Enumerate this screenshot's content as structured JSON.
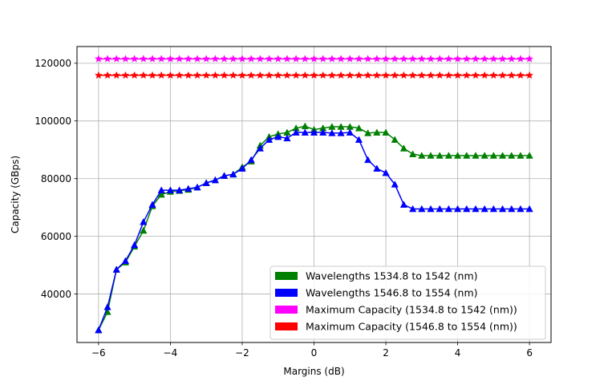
{
  "chart_data": {
    "type": "line",
    "title": "",
    "xlabel": "Margins (dB)",
    "ylabel": "Capacity (GBps)",
    "xlim": [
      -6.6,
      6.6
    ],
    "ylim": [
      23200,
      125800
    ],
    "xticks": [
      -6,
      -4,
      -2,
      0,
      2,
      4,
      6
    ],
    "yticks": [
      40000,
      60000,
      80000,
      100000,
      120000
    ],
    "grid": true,
    "legend_position": "lower-right",
    "x": [
      -6,
      -5.75,
      -5.5,
      -5.25,
      -5,
      -4.75,
      -4.5,
      -4.25,
      -4,
      -3.75,
      -3.5,
      -3.25,
      -3,
      -2.75,
      -2.5,
      -2.25,
      -2,
      -1.75,
      -1.5,
      -1.25,
      -1,
      -0.75,
      -0.5,
      -0.25,
      0,
      0.25,
      0.5,
      0.75,
      1,
      1.25,
      1.5,
      1.75,
      2,
      2.25,
      2.5,
      2.75,
      3,
      3.25,
      3.5,
      3.75,
      4,
      4.25,
      4.5,
      4.75,
      5,
      5.25,
      5.5,
      5.75,
      6
    ],
    "series": [
      {
        "name": "Maximum Capacity (1534.8 to 1542 (nm))",
        "color": "#ff00ff",
        "marker": "star",
        "values": [
          121500,
          121500,
          121500,
          121500,
          121500,
          121500,
          121500,
          121500,
          121500,
          121500,
          121500,
          121500,
          121500,
          121500,
          121500,
          121500,
          121500,
          121500,
          121500,
          121500,
          121500,
          121500,
          121500,
          121500,
          121500,
          121500,
          121500,
          121500,
          121500,
          121500,
          121500,
          121500,
          121500,
          121500,
          121500,
          121500,
          121500,
          121500,
          121500,
          121500,
          121500,
          121500,
          121500,
          121500,
          121500,
          121500,
          121500,
          121500,
          121500
        ]
      },
      {
        "name": "Maximum Capacity (1546.8 to 1554 (nm))",
        "color": "#ff0000",
        "marker": "star",
        "values": [
          115800,
          115800,
          115800,
          115800,
          115800,
          115800,
          115800,
          115800,
          115800,
          115800,
          115800,
          115800,
          115800,
          115800,
          115800,
          115800,
          115800,
          115800,
          115800,
          115800,
          115800,
          115800,
          115800,
          115800,
          115800,
          115800,
          115800,
          115800,
          115800,
          115800,
          115800,
          115800,
          115800,
          115800,
          115800,
          115800,
          115800,
          115800,
          115800,
          115800,
          115800,
          115800,
          115800,
          115800,
          115800,
          115800,
          115800,
          115800,
          115800
        ]
      },
      {
        "name": "Wavelengths 1534.8 to 1542 (nm)",
        "color": "#008000",
        "marker": "triangle",
        "values": [
          27500,
          33800,
          48500,
          51000,
          56500,
          62000,
          70500,
          74500,
          75500,
          75800,
          76200,
          77000,
          78500,
          79500,
          81000,
          81500,
          84000,
          86000,
          91500,
          94500,
          95500,
          96000,
          97500,
          98200,
          97000,
          97500,
          98000,
          98000,
          98000,
          97500,
          95800,
          96000,
          96000,
          93500,
          90500,
          88500,
          88000,
          88000,
          88000,
          88000,
          88000,
          88000,
          88000,
          88000,
          88000,
          88000,
          88000,
          88000,
          88000
        ]
      },
      {
        "name": "Wavelengths 1546.8 to 1554 (nm)",
        "color": "#0000ff",
        "marker": "triangle",
        "values": [
          27500,
          35500,
          48500,
          51500,
          57000,
          65000,
          71000,
          76000,
          76000,
          76000,
          76500,
          77000,
          78500,
          79500,
          81000,
          81500,
          83500,
          86500,
          90500,
          93500,
          94500,
          94000,
          96000,
          96000,
          96000,
          96000,
          95800,
          95800,
          96000,
          93500,
          86500,
          83500,
          82000,
          78000,
          71000,
          69500,
          69500,
          69500,
          69500,
          69500,
          69500,
          69500,
          69500,
          69500,
          69500,
          69500,
          69500,
          69500,
          69500
        ]
      }
    ],
    "legend": [
      {
        "label": "Wavelengths 1534.8 to 1542 (nm)",
        "color": "#008000"
      },
      {
        "label": "Wavelengths 1546.8 to 1554 (nm)",
        "color": "#0000ff"
      },
      {
        "label": "Maximum Capacity (1534.8 to 1542 (nm))",
        "color": "#ff00ff"
      },
      {
        "label": "Maximum Capacity (1546.8 to 1554 (nm))",
        "color": "#ff0000"
      }
    ]
  }
}
